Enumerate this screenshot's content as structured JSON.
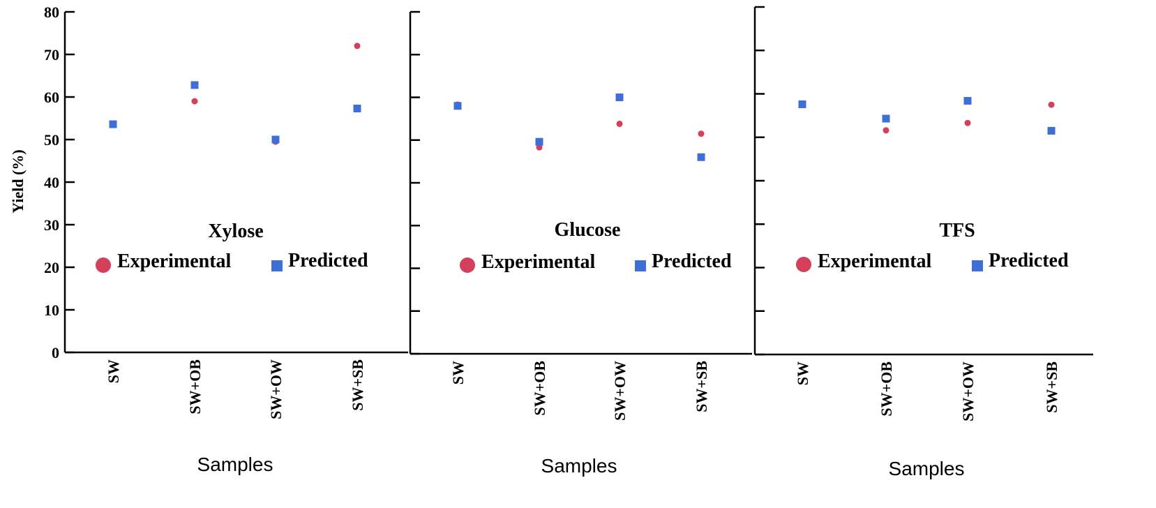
{
  "colors": {
    "experimental": "#d43f5a",
    "predicted": "#3d6fd6",
    "axis": "#000000"
  },
  "chart_data": [
    {
      "type": "scatter",
      "title": "Xylose",
      "xlabel": "Samples",
      "ylabel": "Yield (%)",
      "ylim": [
        0,
        80
      ],
      "yticks": [
        0,
        10,
        20,
        30,
        40,
        50,
        60,
        70,
        80
      ],
      "show_ytick_labels": true,
      "categories": [
        "SW",
        "SW+OB",
        "SW+OW",
        "SW+SB"
      ],
      "series": [
        {
          "name": "Experimental",
          "marker": "circle",
          "values": [
            53.7,
            59.0,
            49.5,
            72.0
          ]
        },
        {
          "name": "Predicted",
          "marker": "square",
          "values": [
            53.6,
            62.8,
            50.0,
            57.3
          ]
        }
      ],
      "legend": "center"
    },
    {
      "type": "scatter",
      "title": "Glucose",
      "xlabel": "Samples",
      "ylabel": "",
      "ylim": [
        0,
        80
      ],
      "yticks": [
        0,
        10,
        20,
        30,
        40,
        50,
        60,
        70,
        80
      ],
      "show_ytick_labels": false,
      "categories": [
        "SW",
        "SW+OB",
        "SW+OW",
        "SW+SB"
      ],
      "series": [
        {
          "name": "Experimental",
          "marker": "circle",
          "values": [
            58.3,
            48.3,
            53.8,
            51.5
          ]
        },
        {
          "name": "Predicted",
          "marker": "square",
          "values": [
            58.0,
            49.6,
            60.0,
            46.0
          ]
        }
      ],
      "legend": "center"
    },
    {
      "type": "scatter",
      "title": "TFS",
      "xlabel": "Samples",
      "ylabel": "",
      "ylim": [
        0,
        80
      ],
      "yticks": [
        0,
        10,
        20,
        30,
        40,
        50,
        60,
        70,
        80
      ],
      "show_ytick_labels": false,
      "categories": [
        "SW",
        "SW+OB",
        "SW+OW",
        "SW+SB"
      ],
      "series": [
        {
          "name": "Experimental",
          "marker": "circle",
          "values": [
            57.8,
            51.6,
            53.3,
            57.5
          ]
        },
        {
          "name": "Predicted",
          "marker": "square",
          "values": [
            57.6,
            54.3,
            58.4,
            51.5
          ]
        }
      ],
      "legend": "center"
    }
  ]
}
